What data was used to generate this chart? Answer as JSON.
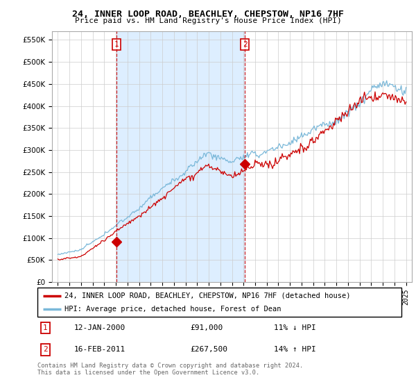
{
  "title": "24, INNER LOOP ROAD, BEACHLEY, CHEPSTOW, NP16 7HF",
  "subtitle": "Price paid vs. HM Land Registry's House Price Index (HPI)",
  "legend_line1": "24, INNER LOOP ROAD, BEACHLEY, CHEPSTOW, NP16 7HF (detached house)",
  "legend_line2": "HPI: Average price, detached house, Forest of Dean",
  "transaction1_label": "1",
  "transaction1_date": "12-JAN-2000",
  "transaction1_price": "£91,000",
  "transaction1_hpi": "11% ↓ HPI",
  "transaction2_label": "2",
  "transaction2_date": "16-FEB-2011",
  "transaction2_price": "£267,500",
  "transaction2_hpi": "14% ↑ HPI",
  "footer": "Contains HM Land Registry data © Crown copyright and database right 2024.\nThis data is licensed under the Open Government Licence v3.0.",
  "hpi_color": "#7ab8d9",
  "price_color": "#cc0000",
  "shade_color": "#ddeeff",
  "marker1_x": 2000.04,
  "marker2_x": 2011.12,
  "marker1_y": 91000,
  "marker2_y": 267500,
  "ylim_min": 0,
  "ylim_max": 570000,
  "xlim_min": 1994.5,
  "xlim_max": 2025.5,
  "yticks": [
    0,
    50000,
    100000,
    150000,
    200000,
    250000,
    300000,
    350000,
    400000,
    450000,
    500000,
    550000
  ],
  "xticks": [
    1995,
    1996,
    1997,
    1998,
    1999,
    2000,
    2001,
    2002,
    2003,
    2004,
    2005,
    2006,
    2007,
    2008,
    2009,
    2010,
    2011,
    2012,
    2013,
    2014,
    2015,
    2016,
    2017,
    2018,
    2019,
    2020,
    2021,
    2022,
    2023,
    2024,
    2025
  ]
}
